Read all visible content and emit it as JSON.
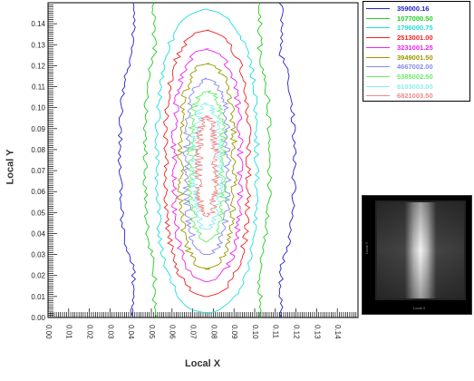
{
  "chart_data": {
    "type": "contour",
    "xlabel": "Local X",
    "ylabel": "Local Y",
    "xlim": [
      0.0,
      0.15
    ],
    "ylim": [
      0.0,
      0.15
    ],
    "x_ticks": [
      "0.00",
      "0.01",
      "0.02",
      "0.03",
      "0.04",
      "0.05",
      "0.06",
      "0.07",
      "0.08",
      "0.09",
      "0.10",
      "0.11",
      "0.12",
      "0.13",
      "0.14"
    ],
    "y_ticks": [
      "0.00",
      "0.01",
      "0.02",
      "0.03",
      "0.04",
      "0.05",
      "0.06",
      "0.07",
      "0.08",
      "0.09",
      "0.10",
      "0.11",
      "0.12",
      "0.13",
      "0.14"
    ],
    "center": {
      "x": 0.077,
      "y": 0.072
    },
    "levels": [
      {
        "value": "359000.16",
        "color": "#2222cc",
        "half_width": 0.042,
        "y_min": 0.0,
        "y_max": 0.15
      },
      {
        "value": "1077000.50",
        "color": "#22cc22",
        "half_width": 0.03,
        "y_min": 0.0,
        "y_max": 0.15
      },
      {
        "value": "1796000.75",
        "color": "#22dddd",
        "half_width": 0.024,
        "y_min": 0.002,
        "y_max": 0.147
      },
      {
        "value": "2513001.00",
        "color": "#ee2222",
        "half_width": 0.02,
        "y_min": 0.01,
        "y_max": 0.137
      },
      {
        "value": "3231001.25",
        "color": "#ee22ee",
        "half_width": 0.016,
        "y_min": 0.017,
        "y_max": 0.128
      },
      {
        "value": "3949001.50",
        "color": "#999900",
        "half_width": 0.013,
        "y_min": 0.023,
        "y_max": 0.121
      },
      {
        "value": "4667002.00",
        "color": "#8888ee",
        "half_width": 0.01,
        "y_min": 0.03,
        "y_max": 0.114
      },
      {
        "value": "5385002.50",
        "color": "#66ee66",
        "half_width": 0.008,
        "y_min": 0.036,
        "y_max": 0.108
      },
      {
        "value": "6103003.00",
        "color": "#88eeee",
        "half_width": 0.006,
        "y_min": 0.042,
        "y_max": 0.102
      },
      {
        "value": "6821003.50",
        "color": "#ee8888",
        "half_width": 0.004,
        "y_min": 0.048,
        "y_max": 0.096
      }
    ],
    "legend_position": "top-right",
    "thumbnail": "grayscale intensity map"
  },
  "thumbnail": {
    "xlabel": "Local X",
    "ylabel": "Local Y"
  }
}
